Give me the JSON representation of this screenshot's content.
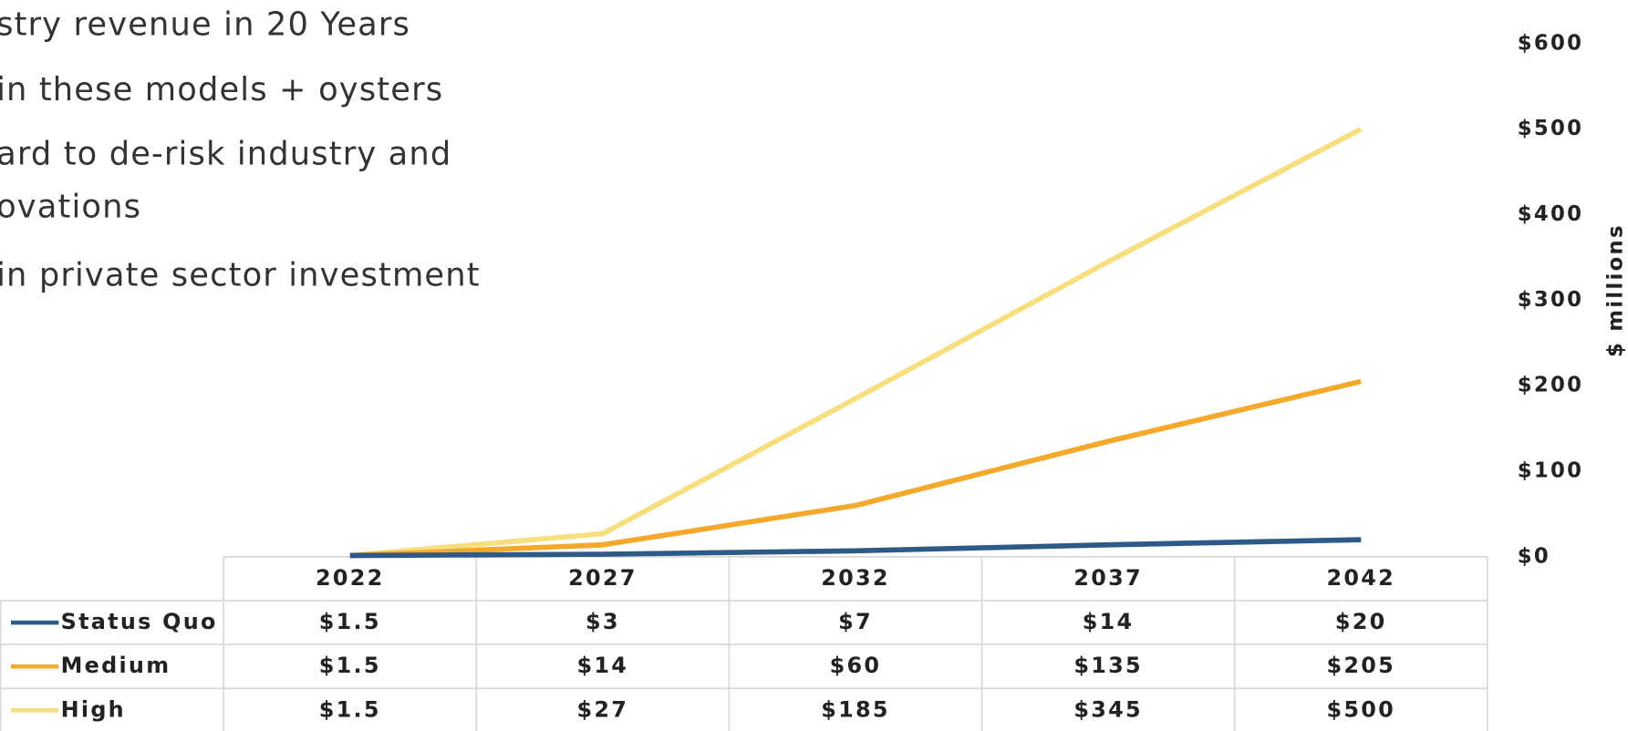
{
  "bullets": [
    "stry revenue in 20 Years",
    "in these models + oysters",
    "ard to de-risk industry and",
    "ovations",
    "in private sector investment"
  ],
  "chart_data": {
    "type": "line",
    "ylabel": "$ millions",
    "categories": [
      "2022",
      "2027",
      "2032",
      "2037",
      "2042"
    ],
    "ylim": [
      0,
      600
    ],
    "yticks": [
      {
        "value": 0,
        "label": "$0"
      },
      {
        "value": 100,
        "label": "$100"
      },
      {
        "value": 200,
        "label": "$200"
      },
      {
        "value": 300,
        "label": "$300"
      },
      {
        "value": 400,
        "label": "$400"
      },
      {
        "value": 500,
        "label": "$500"
      },
      {
        "value": 600,
        "label": "$600"
      }
    ],
    "series": [
      {
        "name": "Status Quo",
        "color": "#2e5a87",
        "values": [
          1.5,
          3,
          7,
          14,
          20
        ],
        "value_labels": [
          "$1.5",
          "$3",
          "$7",
          "$14",
          "$20"
        ]
      },
      {
        "name": "Medium",
        "color": "#f4a92c",
        "values": [
          1.5,
          14,
          60,
          135,
          205
        ],
        "value_labels": [
          "$1.5",
          "$14",
          "$60",
          "$135",
          "$205"
        ]
      },
      {
        "name": "High",
        "color": "#f7df7f",
        "values": [
          1.5,
          27,
          185,
          345,
          500
        ],
        "value_labels": [
          "$1.5",
          "$27",
          "$185",
          "$345",
          "$500"
        ]
      }
    ]
  }
}
